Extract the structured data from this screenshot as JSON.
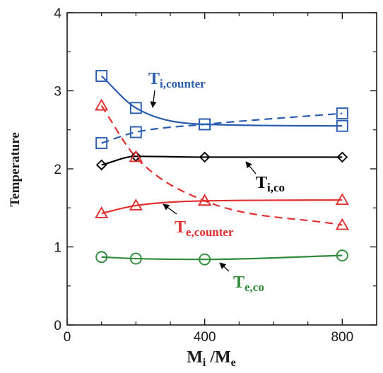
{
  "chart_data": {
    "type": "line",
    "title": "",
    "xlabel": {
      "main": "M",
      "sub1": "i",
      "sep": " /M",
      "sub2": "e"
    },
    "ylabel": "Temperature",
    "xlim": [
      0,
      900
    ],
    "ylim": [
      0,
      4
    ],
    "xticks": [
      0,
      400,
      800
    ],
    "xtick_labels": [
      "0",
      "400",
      "800"
    ],
    "yticks": [
      0,
      1,
      2,
      3,
      4
    ],
    "ytick_labels": [
      "0",
      "1",
      "2",
      "3",
      "4"
    ],
    "grid": false,
    "series": [
      {
        "key": "ti_counter",
        "name": "T",
        "name_sub": "i,counter",
        "color": "#2a5db0",
        "marker": "square",
        "line_style": "solid",
        "x": [
          100,
          200,
          400,
          800
        ],
        "y": [
          3.19,
          2.78,
          2.57,
          2.55
        ]
      },
      {
        "key": "ti_co",
        "name": "T",
        "name_sub": "i,co",
        "color": "#000000",
        "marker": "diamond",
        "line_style": "solid",
        "x": [
          100,
          200,
          400,
          800
        ],
        "y": [
          2.05,
          2.16,
          2.15,
          2.15
        ]
      },
      {
        "key": "ti_dashed",
        "name": "",
        "color": "#2a5db0",
        "marker": "square",
        "line_style": "dashed",
        "x": [
          100,
          200,
          400,
          800
        ],
        "y": [
          2.33,
          2.47,
          2.57,
          2.71
        ]
      },
      {
        "key": "te_counter",
        "name": "T",
        "name_sub": "e,counter",
        "color": "#e03030",
        "marker": "triangle",
        "line_style": "solid",
        "x": [
          100,
          200,
          400,
          800
        ],
        "y": [
          1.43,
          1.53,
          1.59,
          1.6
        ]
      },
      {
        "key": "te_dashed",
        "name": "",
        "color": "#e03030",
        "marker": "triangle",
        "line_style": "dashed",
        "x": [
          100,
          200,
          400,
          800
        ],
        "y": [
          2.81,
          2.15,
          1.59,
          1.28
        ]
      },
      {
        "key": "te_co",
        "name": "T",
        "name_sub": "e,co",
        "color": "#2e8b3a",
        "marker": "circle",
        "line_style": "solid",
        "x": [
          100,
          200,
          400,
          800
        ],
        "y": [
          0.87,
          0.85,
          0.84,
          0.89
        ]
      }
    ]
  }
}
